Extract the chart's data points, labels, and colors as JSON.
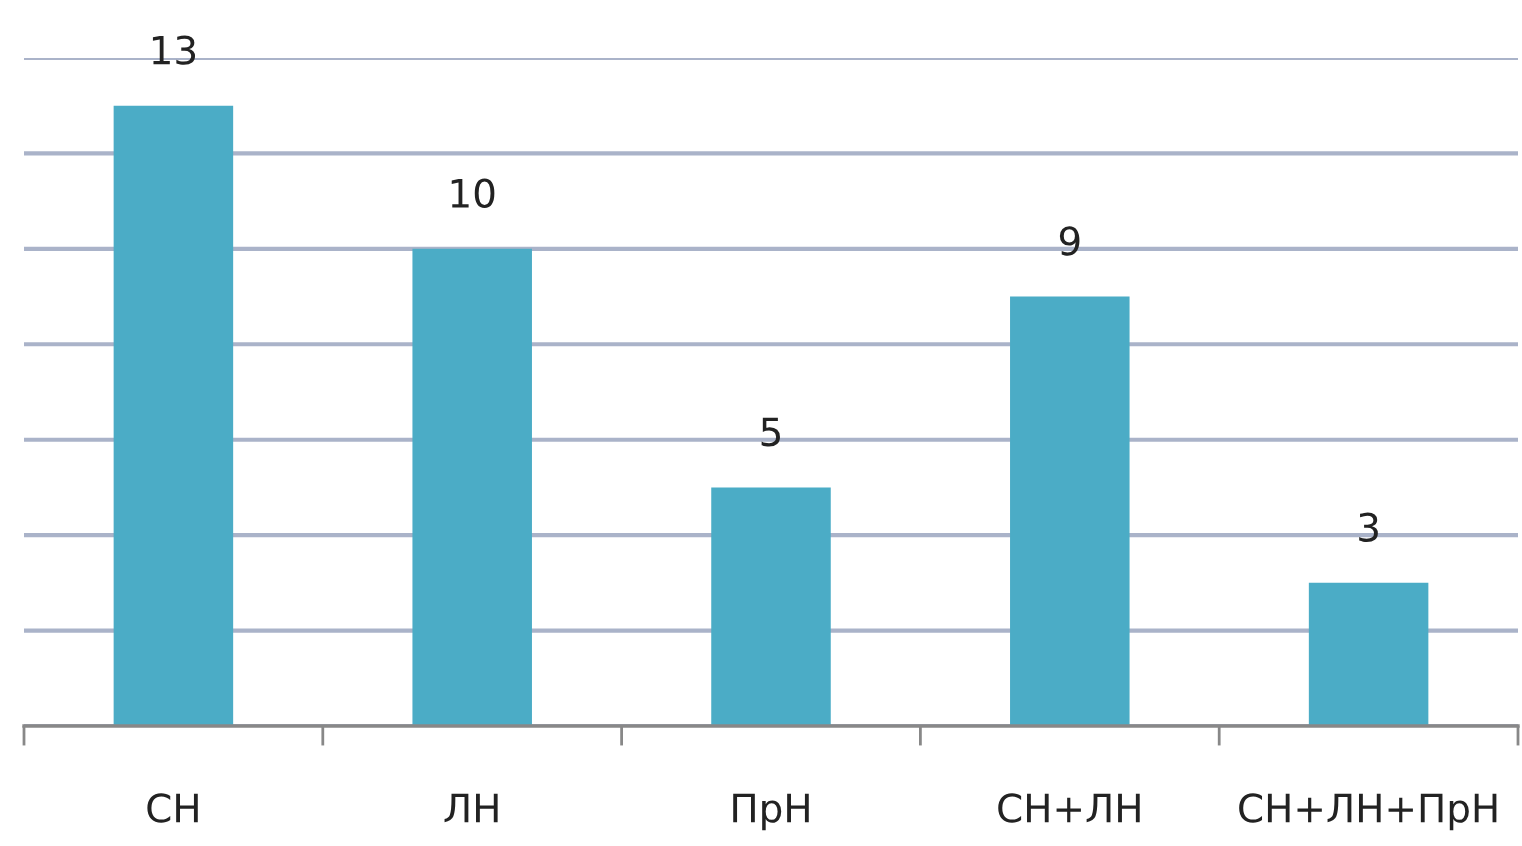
{
  "chart_data": {
    "type": "bar",
    "categories": [
      "СН",
      "ЛН",
      "ПрН",
      "СН+ЛН",
      "СН+ЛН+ПрН"
    ],
    "values": [
      13,
      10,
      5,
      9,
      3
    ],
    "color": "#4bacc6",
    "ylim": [
      0,
      14
    ],
    "yticks": [
      {
        "value": 0,
        "label": null
      },
      {
        "value": 2,
        "label": null
      },
      {
        "value": 4,
        "label": null
      },
      {
        "value": 6,
        "label": null
      },
      {
        "value": 8,
        "label": null
      },
      {
        "value": 10,
        "label": null
      },
      {
        "value": 12,
        "label": null
      },
      {
        "value": 14,
        "label": null
      }
    ],
    "grid": "y",
    "tick_labels": "x",
    "data_labels": true
  }
}
